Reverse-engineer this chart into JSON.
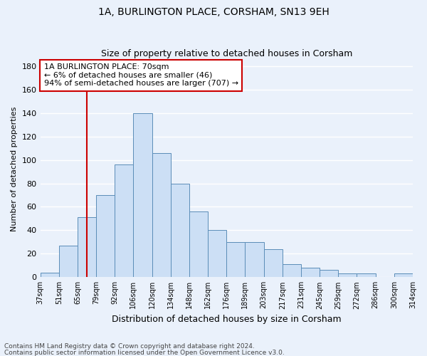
{
  "title1": "1A, BURLINGTON PLACE, CORSHAM, SN13 9EH",
  "title2": "Size of property relative to detached houses in Corsham",
  "xlabel": "Distribution of detached houses by size in Corsham",
  "ylabel": "Number of detached properties",
  "bar_values": [
    4,
    27,
    51,
    70,
    96,
    140,
    106,
    80,
    56,
    40,
    30,
    30,
    24,
    11,
    8,
    6,
    3,
    3,
    0,
    3
  ],
  "bin_labels": [
    "37sqm",
    "51sqm",
    "65sqm",
    "79sqm",
    "92sqm",
    "106sqm",
    "120sqm",
    "134sqm",
    "148sqm",
    "162sqm",
    "176sqm",
    "189sqm",
    "203sqm",
    "217sqm",
    "231sqm",
    "245sqm",
    "259sqm",
    "272sqm",
    "286sqm",
    "300sqm",
    "314sqm"
  ],
  "bar_color": "#ccdff5",
  "bar_edge_color": "#5b8db8",
  "background_color": "#eaf1fb",
  "grid_color": "#ffffff",
  "vline_x": 2.5,
  "vline_color": "#cc0000",
  "annotation_text": "1A BURLINGTON PLACE: 70sqm\n← 6% of detached houses are smaller (46)\n94% of semi-detached houses are larger (707) →",
  "annotation_box_color": "#ffffff",
  "annotation_box_edge": "#cc0000",
  "ylim": [
    0,
    185
  ],
  "yticks": [
    0,
    20,
    40,
    60,
    80,
    100,
    120,
    140,
    160,
    180
  ],
  "footnote1": "Contains HM Land Registry data © Crown copyright and database right 2024.",
  "footnote2": "Contains public sector information licensed under the Open Government Licence v3.0."
}
